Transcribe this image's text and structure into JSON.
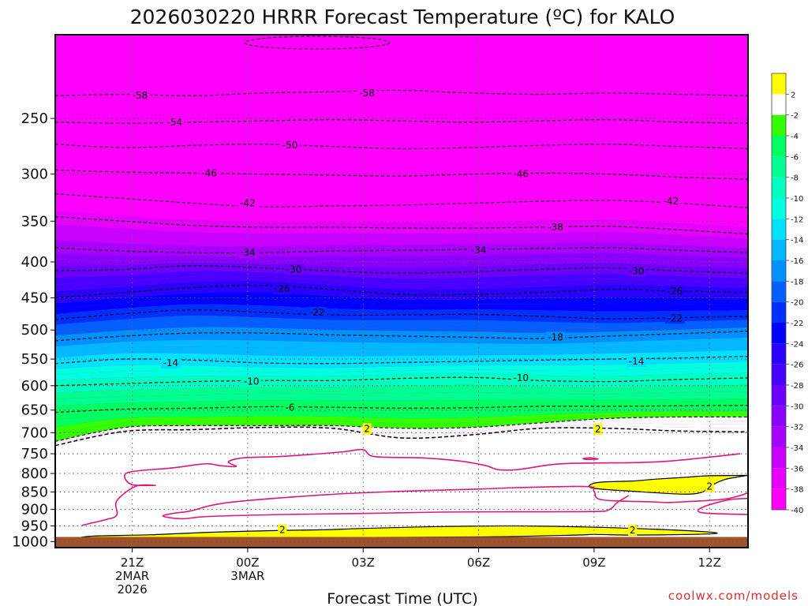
{
  "title": "2026030220 HRRR Forecast Temperature (ºC) for KALO",
  "credit": "coolwx.com/models",
  "colors": {
    "surface": "#a0522d",
    "freezing_contour": "#e0177a",
    "fill_bands": [
      "#ff00ff",
      "#e600ff",
      "#c800ff",
      "#a800ff",
      "#8a00ff",
      "#6b00ff",
      "#4800ff",
      "#2a00ff",
      "#0000ff",
      "#0030ff",
      "#0060ff",
      "#0090ff",
      "#00b8ff",
      "#00e0ff",
      "#00ffe0",
      "#00ffc0",
      "#00ff90",
      "#00ff60",
      "#33ff00",
      "#ffffff",
      "#ffff00"
    ]
  },
  "chart_data": {
    "type": "heatmap",
    "title": "2026030220 HRRR Forecast Temperature (ºC) for KALO",
    "xlabel": "Forecast Time (UTC)",
    "ylabel": "",
    "y_scale": "log-pressure (hPa), inverted",
    "ylim": [
      1020,
      190
    ],
    "xlim_hours": [
      -1,
      17
    ],
    "grid": true,
    "y_ticks": [
      250,
      300,
      350,
      400,
      450,
      500,
      550,
      600,
      650,
      700,
      750,
      800,
      850,
      900,
      950,
      1000
    ],
    "y_tick_labels": [
      "250",
      "300",
      "350",
      "400",
      "450",
      "500",
      "550",
      "600",
      "650",
      "700",
      "750",
      "800",
      "850",
      "900",
      "950",
      "1000"
    ],
    "x_ticks": [
      {
        "hour": 1,
        "lines": [
          "21Z",
          "2MAR",
          "2026"
        ]
      },
      {
        "hour": 4,
        "lines": [
          "00Z",
          "3MAR"
        ]
      },
      {
        "hour": 7,
        "lines": [
          "03Z"
        ]
      },
      {
        "hour": 10,
        "lines": [
          "06Z"
        ]
      },
      {
        "hour": 13,
        "lines": [
          "09Z"
        ]
      },
      {
        "hour": 16,
        "lines": [
          "12Z"
        ]
      }
    ],
    "colorbar_labels": [
      "2",
      "-2",
      "-4",
      "-6",
      "-8",
      "-10",
      "-12",
      "-14",
      "-16",
      "-18",
      "-20",
      "-22",
      "-24",
      "-26",
      "-28",
      "-30",
      "-32",
      "-34",
      "-36",
      "-38",
      "-40"
    ],
    "contour_levels": [
      -58,
      -54,
      -50,
      -46,
      -42,
      -38,
      -34,
      -30,
      -26,
      -22,
      -18,
      -14,
      -10,
      -6,
      -2,
      2
    ],
    "contour_label_text": [
      "-58",
      "-54",
      "-50",
      "-46",
      "-42",
      "-38",
      "-34",
      "-30",
      "-26",
      "-22",
      "-18",
      "-14",
      "-10",
      "-6",
      "2"
    ],
    "isotherm_pressures": [
      {
        "temp": -58,
        "p": [
          232,
          231,
          232,
          230,
          229,
          228,
          230,
          231,
          230,
          231,
          232
        ]
      },
      {
        "temp": -54,
        "p": [
          253,
          254,
          253,
          252,
          251,
          252,
          253,
          252,
          251,
          253,
          254
        ]
      },
      {
        "temp": -50,
        "p": [
          272,
          275,
          273,
          272,
          274,
          276,
          275,
          273,
          272,
          274,
          276
        ]
      },
      {
        "temp": -46,
        "p": [
          296,
          298,
          299,
          300,
          301,
          302,
          300,
          299,
          300,
          303,
          305
        ]
      },
      {
        "temp": -42,
        "p": [
          320,
          325,
          330,
          334,
          333,
          332,
          330,
          328,
          327,
          330,
          335
        ]
      },
      {
        "temp": -38,
        "p": [
          345,
          350,
          355,
          357,
          357,
          358,
          358,
          357,
          356,
          360,
          365
        ]
      },
      {
        "temp": -34,
        "p": [
          382,
          386,
          388,
          388,
          386,
          385,
          384,
          383,
          382,
          385,
          388
        ]
      },
      {
        "temp": -30,
        "p": [
          412,
          410,
          405,
          408,
          412,
          415,
          413,
          410,
          408,
          412,
          415
        ]
      },
      {
        "temp": -26,
        "p": [
          450,
          442,
          435,
          432,
          438,
          445,
          445,
          442,
          438,
          440,
          442
        ]
      },
      {
        "temp": -22,
        "p": [
          483,
          474,
          468,
          472,
          476,
          476,
          475,
          478,
          482,
          480,
          478
        ]
      },
      {
        "temp": -18,
        "p": [
          518,
          510,
          505,
          505,
          508,
          510,
          512,
          514,
          510,
          506,
          502
        ]
      },
      {
        "temp": -14,
        "p": [
          558,
          550,
          552,
          557,
          558,
          556,
          554,
          552,
          550,
          548,
          545
        ]
      },
      {
        "temp": -10,
        "p": [
          600,
          596,
          592,
          590,
          590,
          586,
          584,
          590,
          592,
          588,
          585
        ]
      },
      {
        "temp": -6,
        "p": [
          655,
          648,
          646,
          643,
          644,
          646,
          645,
          642,
          642,
          641,
          640
        ]
      },
      {
        "temp": -2,
        "p": [
          720,
          688,
          684,
          684,
          684,
          690,
          688,
          678,
          668,
          665,
          665
        ]
      },
      {
        "temp": 2,
        "p": [
          730,
          697,
          693,
          688,
          690,
          712,
          705,
          690,
          690,
          696,
          698
        ]
      }
    ],
    "isotherm_labels": [
      {
        "temp": -58,
        "text": "-58",
        "hour": 1.2,
        "p": 232
      },
      {
        "temp": -58,
        "text": "-58",
        "hour": 7.1,
        "p": 230
      },
      {
        "temp": -54,
        "text": "-54",
        "hour": 2.1,
        "p": 253
      },
      {
        "temp": -50,
        "text": "-50",
        "hour": 5.1,
        "p": 273
      },
      {
        "temp": -46,
        "text": "-46",
        "hour": 3.0,
        "p": 299
      },
      {
        "temp": -46,
        "text": "-46",
        "hour": 11.1,
        "p": 300
      },
      {
        "temp": -42,
        "text": "-42",
        "hour": 4.0,
        "p": 330
      },
      {
        "temp": -42,
        "text": "-42",
        "hour": 15.0,
        "p": 328
      },
      {
        "temp": -38,
        "text": "-38",
        "hour": 12.0,
        "p": 357
      },
      {
        "temp": -34,
        "text": "-34",
        "hour": 4.0,
        "p": 388
      },
      {
        "temp": -34,
        "text": "-34",
        "hour": 10.0,
        "p": 385
      },
      {
        "temp": -30,
        "text": "-30",
        "hour": 5.2,
        "p": 410
      },
      {
        "temp": -30,
        "text": "-30",
        "hour": 14.1,
        "p": 412
      },
      {
        "temp": -26,
        "text": "-26",
        "hour": 4.9,
        "p": 437
      },
      {
        "temp": -26,
        "text": "-26",
        "hour": 15.1,
        "p": 440
      },
      {
        "temp": -22,
        "text": "-22",
        "hour": 5.8,
        "p": 472
      },
      {
        "temp": -22,
        "text": "-22",
        "hour": 15.1,
        "p": 481
      },
      {
        "temp": -18,
        "text": "-18",
        "hour": 12.0,
        "p": 512
      },
      {
        "temp": -14,
        "text": "-14",
        "hour": 2.0,
        "p": 557
      },
      {
        "temp": -14,
        "text": "-14",
        "hour": 14.1,
        "p": 554
      },
      {
        "temp": -10,
        "text": "-10",
        "hour": 4.1,
        "p": 592
      },
      {
        "temp": -10,
        "text": "-10",
        "hour": 11.1,
        "p": 585
      },
      {
        "temp": -6,
        "text": "-6",
        "hour": 5.1,
        "p": 645
      },
      {
        "temp": 2,
        "text": "2",
        "hour": 7.1,
        "p": 691
      },
      {
        "temp": 2,
        "text": "2",
        "hour": 13.1,
        "p": 692
      },
      {
        "temp": 2,
        "text": "2",
        "hour": 16.0,
        "p": 835
      },
      {
        "temp": 2,
        "text": "2",
        "hour": 4.9,
        "p": 962
      },
      {
        "temp": 2,
        "text": "2",
        "hour": 14.0,
        "p": 963
      }
    ],
    "zero_isotherm_outlines": [
      {
        "name": "upper-lobe",
        "points": [
          [
            16.8,
            750
          ],
          [
            15.0,
            768
          ],
          [
            14.0,
            772
          ],
          [
            13.0,
            773
          ],
          [
            12.0,
            776
          ],
          [
            11.0,
            790
          ],
          [
            10.5,
            790
          ],
          [
            10.2,
            780
          ],
          [
            9.5,
            768
          ],
          [
            8.5,
            760
          ],
          [
            7.3,
            757
          ],
          [
            7.0,
            740
          ],
          [
            6.5,
            745
          ],
          [
            5.6,
            752
          ],
          [
            4.8,
            757
          ],
          [
            3.9,
            760
          ],
          [
            3.5,
            770
          ],
          [
            3.7,
            782
          ],
          [
            3.3,
            780
          ],
          [
            3.0,
            775
          ],
          [
            2.7,
            777
          ],
          [
            2.0,
            786
          ],
          [
            1.0,
            795
          ],
          [
            0.8,
            808
          ],
          [
            1.0,
            830
          ],
          [
            1.6,
            832
          ],
          [
            1.1,
            834
          ],
          [
            0.6,
            875
          ],
          [
            0.6,
            917
          ],
          [
            0.3,
            931
          ],
          [
            -0.3,
            948
          ]
        ]
      },
      {
        "name": "middle-lobe",
        "points": [
          [
            17.0,
            853
          ],
          [
            16.4,
            870
          ],
          [
            15.3,
            878
          ],
          [
            14.9,
            880
          ],
          [
            14.5,
            878
          ],
          [
            13.2,
            872
          ],
          [
            13.0,
            848
          ],
          [
            12.8,
            835
          ],
          [
            11.0,
            838
          ],
          [
            10.0,
            842
          ],
          [
            8.0,
            848
          ],
          [
            6.0,
            858
          ],
          [
            3.5,
            880
          ],
          [
            2.5,
            905
          ],
          [
            2.1,
            911
          ],
          [
            1.8,
            920
          ],
          [
            2.3,
            928
          ],
          [
            3.0,
            921
          ],
          [
            5.0,
            915
          ],
          [
            7.0,
            912
          ],
          [
            9.0,
            908
          ],
          [
            10.8,
            907
          ],
          [
            13.0,
            906
          ],
          [
            13.4,
            900
          ],
          [
            13.6,
            880
          ],
          [
            13.9,
            860
          ]
        ]
      },
      {
        "name": "right-pocket",
        "points": [
          [
            17.0,
            868
          ],
          [
            16.5,
            872
          ],
          [
            15.9,
            890
          ],
          [
            15.7,
            905
          ],
          [
            16.0,
            912
          ],
          [
            17.0,
            915
          ]
        ]
      },
      {
        "name": "small-ring",
        "points": [
          [
            12.7,
            762
          ],
          [
            12.9,
            760
          ],
          [
            13.1,
            763
          ],
          [
            12.8,
            764
          ],
          [
            12.7,
            762
          ]
        ]
      }
    ],
    "warm_regions_above_2C": [
      {
        "name": "near-surface-band",
        "points": [
          [
            -0.4,
            988
          ],
          [
            0.0,
            982
          ],
          [
            1.5,
            978
          ],
          [
            3.0,
            970
          ],
          [
            4.5,
            965
          ],
          [
            6.0,
            962
          ],
          [
            7.0,
            958
          ],
          [
            9.0,
            952
          ],
          [
            11.0,
            950
          ],
          [
            13.0,
            954
          ],
          [
            14.5,
            960
          ],
          [
            15.6,
            966
          ],
          [
            16.2,
            973
          ],
          [
            15.5,
            977
          ],
          [
            14.0,
            979
          ],
          [
            13.0,
            977
          ],
          [
            12.5,
            979
          ],
          [
            10.0,
            985
          ],
          [
            6.0,
            987
          ],
          [
            3.0,
            987
          ],
          [
            0.0,
            988
          ]
        ]
      },
      {
        "name": "elevated-warm-layer",
        "points": [
          [
            17.0,
            805
          ],
          [
            16.0,
            806
          ],
          [
            15.4,
            810
          ],
          [
            14.6,
            815
          ],
          [
            14.0,
            820
          ],
          [
            13.2,
            823
          ],
          [
            12.9,
            830
          ],
          [
            13.0,
            840
          ],
          [
            14.0,
            848
          ],
          [
            15.3,
            856
          ],
          [
            15.8,
            851
          ],
          [
            16.0,
            835
          ],
          [
            16.4,
            816
          ],
          [
            17.0,
            805
          ]
        ]
      }
    ]
  }
}
